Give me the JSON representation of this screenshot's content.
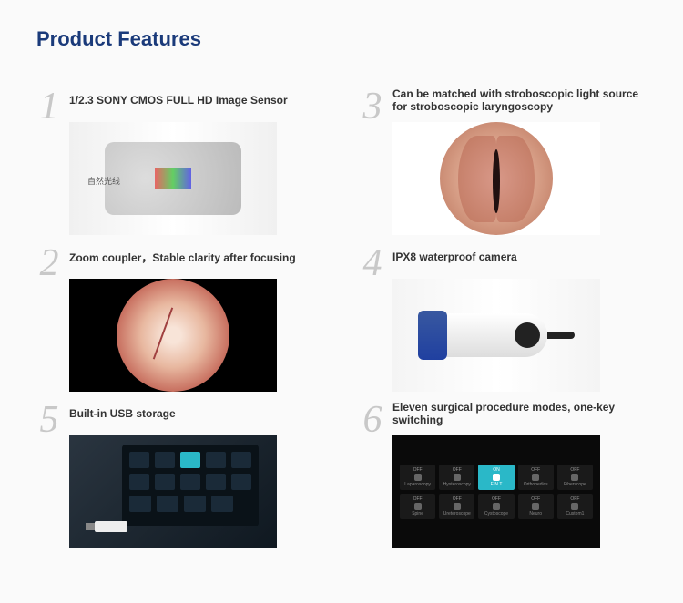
{
  "title": "Product Features",
  "features": [
    {
      "number": "1",
      "text": "1/2.3 SONY CMOS FULL HD Image Sensor",
      "img_label": "自然光线"
    },
    {
      "number": "3",
      "text": "Can be matched with stroboscopic light source for stroboscopic laryngoscopy"
    },
    {
      "number": "2",
      "text": "Zoom coupler，Stable clarity after focusing"
    },
    {
      "number": "4",
      "text": "IPX8 waterproof camera"
    },
    {
      "number": "5",
      "text": "Built-in USB storage"
    },
    {
      "number": "6",
      "text": "Eleven surgical procedure modes, one-key switching"
    }
  ],
  "modes_panel": {
    "row1": [
      {
        "state": "OFF",
        "label": "Laparoscopy"
      },
      {
        "state": "OFF",
        "label": "Hysteroscopy"
      },
      {
        "state": "ON",
        "label": "E.N.T"
      },
      {
        "state": "OFF",
        "label": "Orthopedics"
      },
      {
        "state": "OFF",
        "label": "Fiberscope"
      }
    ],
    "row2": [
      {
        "state": "OFF",
        "label": "Spine"
      },
      {
        "state": "OFF",
        "label": "Ureteroscope"
      },
      {
        "state": "OFF",
        "label": "Cystoscope"
      },
      {
        "state": "OFF",
        "label": "Neuro"
      },
      {
        "state": "OFF",
        "label": "Custom1"
      }
    ]
  },
  "colors": {
    "title": "#1a3a7a",
    "number": "#c8c8c8",
    "text": "#333333",
    "accent": "#2ab8c8"
  }
}
